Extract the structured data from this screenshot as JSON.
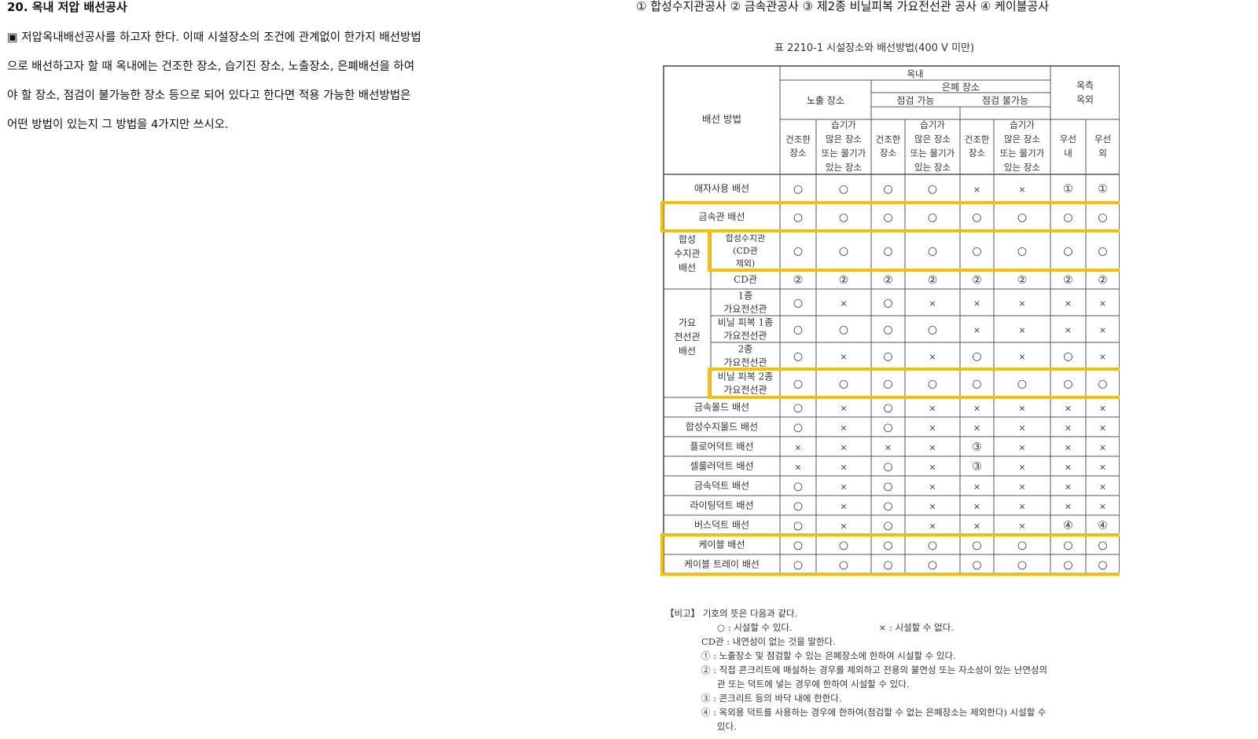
{
  "question": {
    "title": "20. 옥내 저압 배선공사",
    "lines": [
      "▣ 저압옥내배선공사를 하고자 한다. 이때 시설장소의 조건에 관계없이 한가지 배선방법",
      "으로 배선하고자 할 때 옥내에는 건조한 장소, 습기진 장소, 노출장소, 은폐배선을 하여",
      "야 할 장소, 점검이 불가능한 장소 등으로 되어 있다고 한다면 적용 가능한 배선방법은",
      "어떤 방법이 있는지 그 방법을 4가지만 쓰시오."
    ]
  },
  "answer": "① 합성수지관공사 ② 금속관공사 ③ 제2종 비닐피복 가요전선관 공사 ④ 케이블공사",
  "table": {
    "caption": "표 2210-1 시설장소와 배선방법(400 V 미만)",
    "headers": {
      "method": "배선 방법",
      "indoor": "옥내",
      "outdoor": "옥측 옥외",
      "exposed": "노출 장소",
      "hidden": "은폐 장소",
      "inspectable": "점검 가능",
      "not_inspectable": "점검 불가능",
      "dry": "건조한 장소",
      "wet": "습기가 많은 장소 또는 물기가 있는 장소",
      "rain_in": "우선 내",
      "rain_out": "우선 외"
    },
    "groups": [
      {
        "label": "합성 수지관 배선",
        "rows": [
          2,
          3
        ]
      },
      {
        "label": "가요 전선관 배선",
        "rows": [
          4,
          5,
          6,
          7
        ]
      }
    ],
    "rows": [
      {
        "name": "애자사용 배선",
        "values": [
          "○",
          "○",
          "○",
          "○",
          "×",
          "×",
          "①",
          "①"
        ]
      },
      {
        "name": "금속관 배선",
        "values": [
          "○",
          "○",
          "○",
          "○",
          "○",
          "○",
          "○",
          "○"
        ]
      },
      {
        "name": "합성수지관 (CD관 제외)",
        "values": [
          "○",
          "○",
          "○",
          "○",
          "○",
          "○",
          "○",
          "○"
        ]
      },
      {
        "name": "CD관",
        "values": [
          "②",
          "②",
          "②",
          "②",
          "②",
          "②",
          "②",
          "②"
        ]
      },
      {
        "name": "1종 가요전선관",
        "values": [
          "○",
          "×",
          "○",
          "×",
          "×",
          "×",
          "×",
          "×"
        ]
      },
      {
        "name": "비닐 피복 1종 가요전선관",
        "values": [
          "○",
          "○",
          "○",
          "○",
          "×",
          "×",
          "×",
          "×"
        ]
      },
      {
        "name": "2종 가요전선관",
        "values": [
          "○",
          "×",
          "○",
          "×",
          "○",
          "×",
          "○",
          "×"
        ]
      },
      {
        "name": "비닐 피복 2종 가요전선관",
        "values": [
          "○",
          "○",
          "○",
          "○",
          "○",
          "○",
          "○",
          "○"
        ]
      },
      {
        "name": "금속몰드 배선",
        "values": [
          "○",
          "×",
          "○",
          "×",
          "×",
          "×",
          "×",
          "×"
        ]
      },
      {
        "name": "합성수지몰드 배선",
        "values": [
          "○",
          "×",
          "○",
          "×",
          "×",
          "×",
          "×",
          "×"
        ]
      },
      {
        "name": "플로어덕트 배선",
        "values": [
          "×",
          "×",
          "×",
          "×",
          "③",
          "×",
          "×",
          "×"
        ]
      },
      {
        "name": "셀룰러덕트 배선",
        "values": [
          "×",
          "×",
          "○",
          "×",
          "③",
          "×",
          "×",
          "×"
        ]
      },
      {
        "name": "금속덕트 배선",
        "values": [
          "○",
          "×",
          "○",
          "×",
          "×",
          "×",
          "×",
          "×"
        ]
      },
      {
        "name": "라이팅덕트 배선",
        "values": [
          "○",
          "×",
          "○",
          "×",
          "×",
          "×",
          "×",
          "×"
        ]
      },
      {
        "name": "버스덕트 배선",
        "values": [
          "○",
          "×",
          "○",
          "×",
          "×",
          "×",
          "④",
          "④"
        ]
      },
      {
        "name": "케이블 배선",
        "values": [
          "○",
          "○",
          "○",
          "○",
          "○",
          "○",
          "○",
          "○"
        ]
      },
      {
        "name": "케이블 트레이 배선",
        "values": [
          "○",
          "○",
          "○",
          "○",
          "○",
          "○",
          "○",
          "○"
        ]
      }
    ],
    "highlight_color": "#F5C000",
    "notes": [
      "【비고】 기호의 뜻은 다음과 같다.",
      "○ : 시설할 수 있다.",
      "× : 시설할 수 없다.",
      "CD관 : 내연성이 없는 것을 말한다.",
      "① : 노출장소 및 점검할 수 있는 은폐장소에 한하여 시설할 수 있다.",
      "② : 직접 콘크리트에 매설하는 경우를 제외하고 전용의 불연성 또는 자소성이 있는 난연성의",
      "관 또는 덕트에 넣는 경우에 한하여 시설할 수 있다.",
      "③ : 콘크리트 등의 바닥 내에 한한다.",
      "④ : 옥외용 덕트를 사용하는 경우에 한하여(점검할 수 없는 은폐장소는 제외한다) 시설할 수",
      "있다."
    ]
  }
}
